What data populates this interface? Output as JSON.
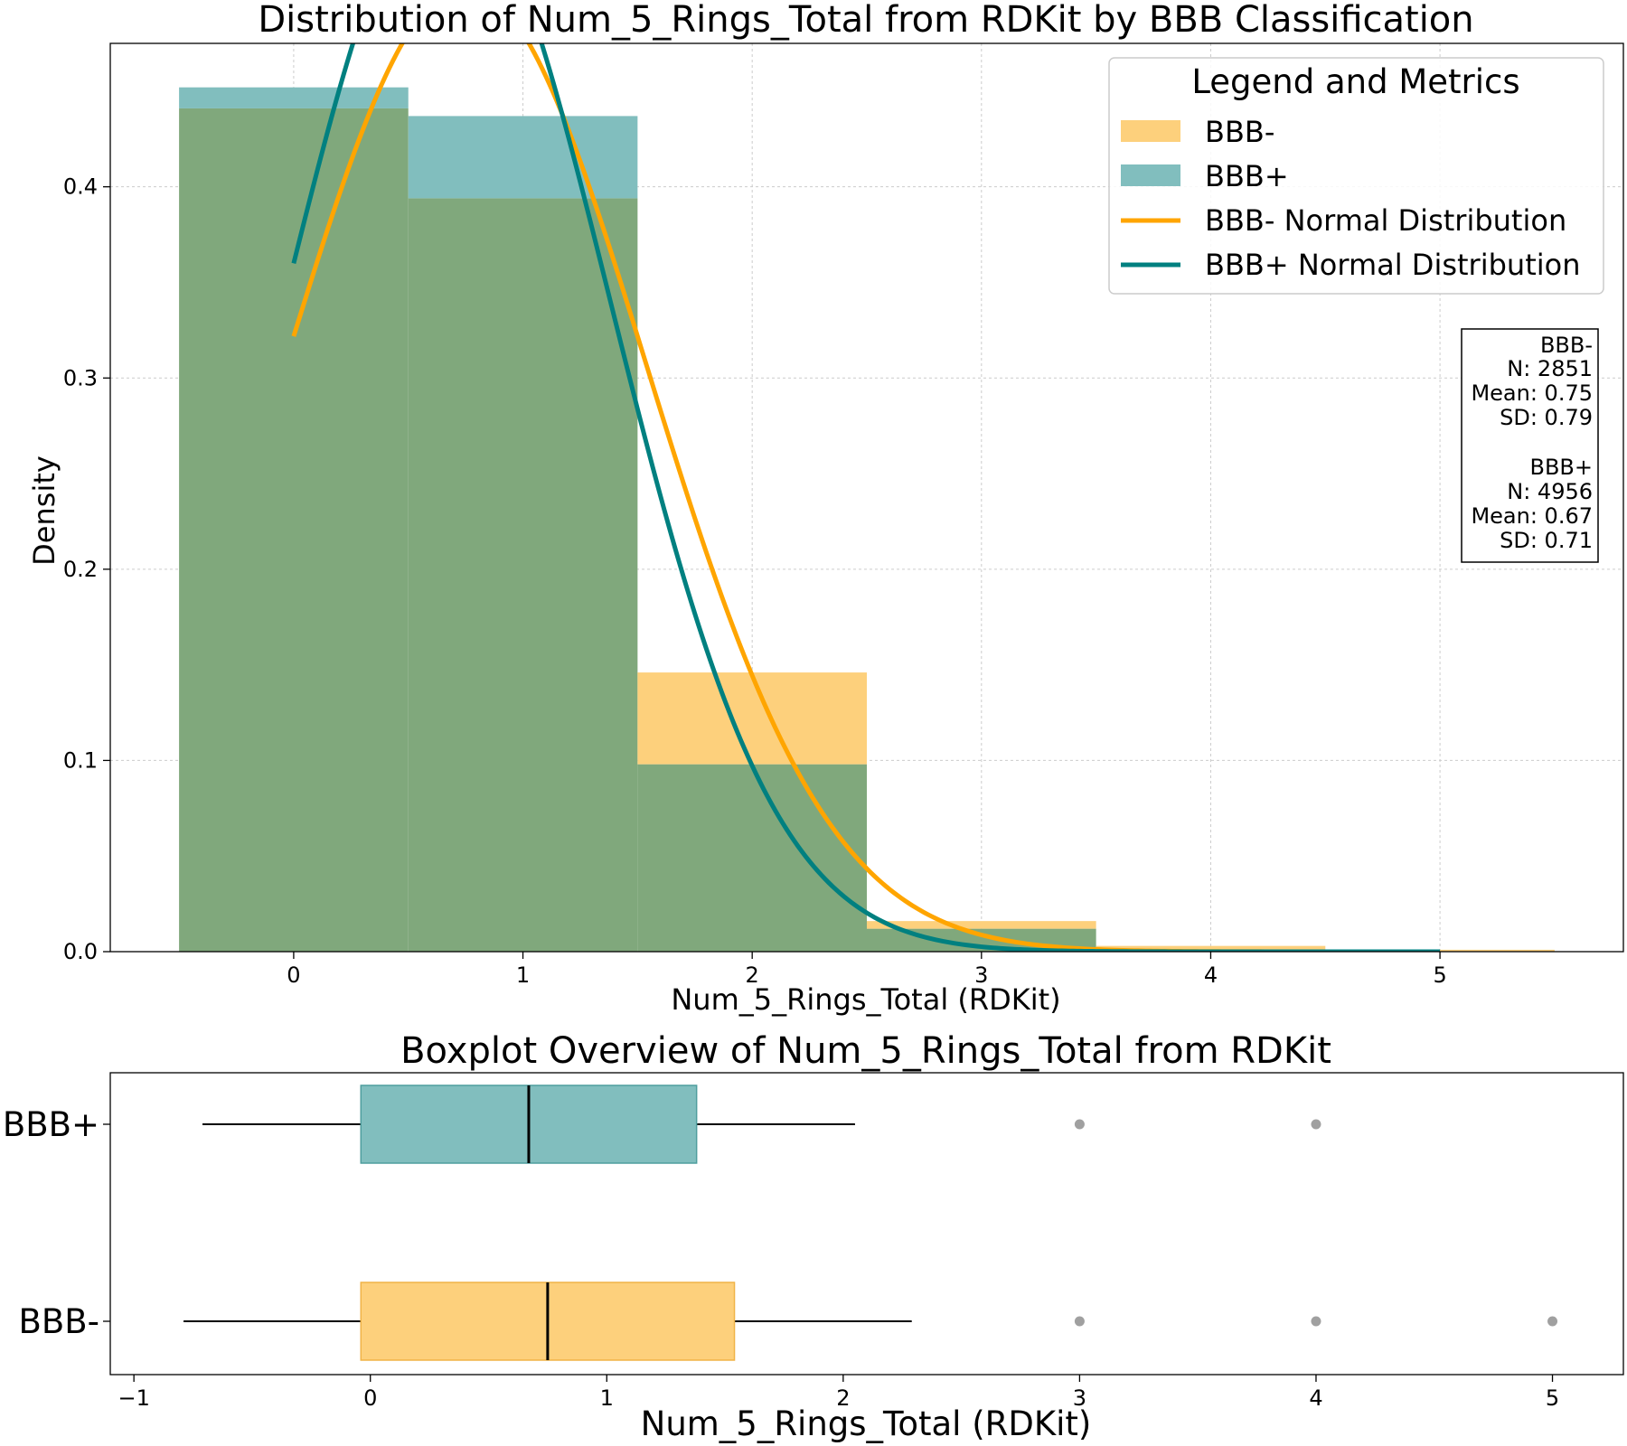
{
  "chart_data": [
    {
      "type": "bar",
      "title": "Distribution of Num_5_Rings_Total from RDKit by BBB Classification",
      "xlabel": "Num_5_Rings_Total (RDKit)",
      "ylabel": "Density",
      "xlim": [
        -0.8,
        5.8
      ],
      "ylim": [
        0,
        0.475
      ],
      "x_ticks": [
        "0",
        "1",
        "2",
        "3",
        "4",
        "5"
      ],
      "y_ticks": [
        "0.0",
        "0.1",
        "0.2",
        "0.3",
        "0.4"
      ],
      "grid": true,
      "legend_title": "Legend and Metrics",
      "legend_placement": "upper right",
      "categories": [
        0,
        1,
        2,
        3,
        4,
        5
      ],
      "series": [
        {
          "name": "BBB-",
          "color": "#fdd07c",
          "values": [
            0.441,
            0.394,
            0.146,
            0.016,
            0.003,
            0.001
          ]
        },
        {
          "name": "BBB+",
          "color": "#81bebe",
          "values": [
            0.452,
            0.437,
            0.098,
            0.012,
            0.001,
            0.0
          ]
        }
      ],
      "overlap_color": "#80a87c",
      "normal_curves": [
        {
          "name": "BBB- Normal Distribution",
          "color": "#ffa500",
          "mean": 0.75,
          "sd": 0.79,
          "x_range": [
            0,
            5
          ]
        },
        {
          "name": "BBB+ Normal Distribution",
          "color": "#008080",
          "mean": 0.67,
          "sd": 0.71,
          "x_range": [
            0,
            5
          ]
        }
      ],
      "metrics": [
        {
          "group": "BBB-",
          "n": "N: 2851",
          "mean": "Mean: 0.75",
          "sd": "SD: 0.79"
        },
        {
          "group": "BBB+",
          "n": "N: 4956",
          "mean": "Mean: 0.67",
          "sd": "SD: 0.71"
        }
      ]
    },
    {
      "type": "boxplot",
      "title": "Boxplot Overview of Num_5_Rings_Total from RDKit",
      "xlabel": "Num_5_Rings_Total (RDKit)",
      "xlim": [
        -1.1,
        5.3
      ],
      "x_ticks": [
        "−1",
        "0",
        "1",
        "2",
        "3",
        "4",
        "5"
      ],
      "categories": [
        "BBB+",
        "BBB-"
      ],
      "series": [
        {
          "name": "BBB+",
          "color": "#81bebe",
          "edge": "#4f9e9e",
          "whisker_low": -0.71,
          "q1": -0.04,
          "median": 0.67,
          "q3": 1.38,
          "whisker_high": 2.05,
          "outliers": [
            3,
            4
          ]
        },
        {
          "name": "BBB-",
          "color": "#fdd07c",
          "edge": "#f0b347",
          "whisker_low": -0.79,
          "q1": -0.04,
          "median": 0.75,
          "q3": 1.54,
          "whisker_high": 2.29,
          "outliers": [
            3,
            4,
            5
          ]
        }
      ]
    }
  ]
}
